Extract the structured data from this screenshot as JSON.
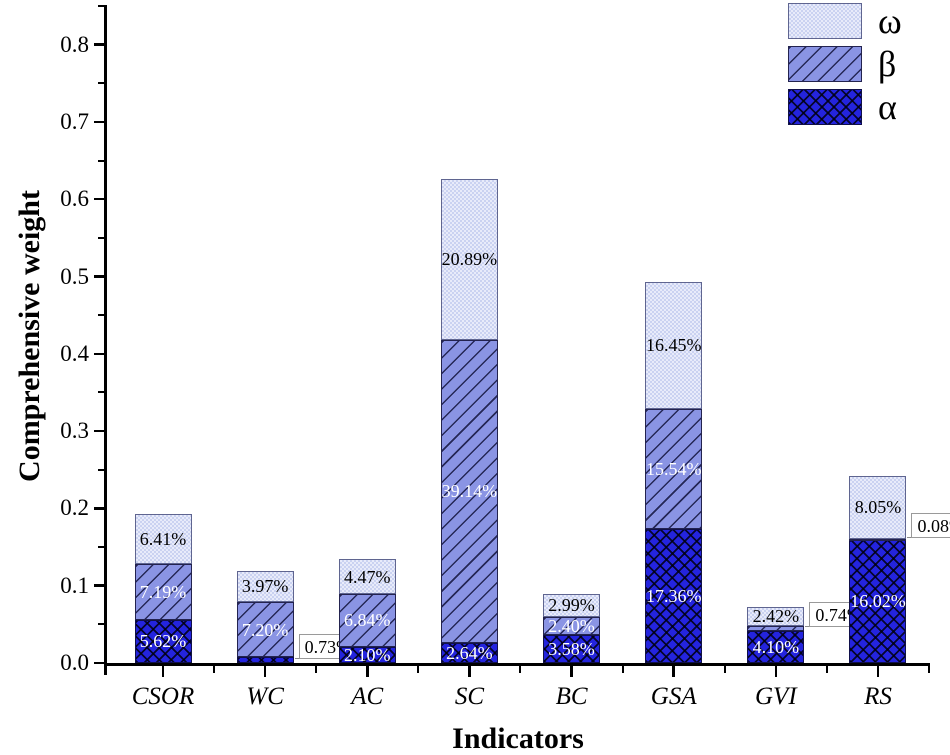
{
  "figure": {
    "background": "#ffffff",
    "accent_colors": {
      "alpha_fill": "#2424DE",
      "beta_fill": "#8A94E4",
      "omega_fill": "#CDD5F2",
      "axis_color": "#000000",
      "inside_label_light": "#ffffff",
      "inside_label_dark": "#000000"
    }
  },
  "chart_data": {
    "type": "bar",
    "subtype": "stacked-vertical",
    "title": "",
    "xlabel": "Indicators",
    "ylabel": "Comprehensive weight",
    "unit": "%",
    "note": "segment values are percentages; bar height in weight units = value/100",
    "categories": [
      "CSOR",
      "WC",
      "AC",
      "SC",
      "BC",
      "GSA",
      "GVI",
      "RS"
    ],
    "series": [
      {
        "name": "α",
        "pattern": "alpha",
        "label_color": "light",
        "values": [
          5.62,
          0.73,
          2.1,
          2.64,
          3.58,
          17.36,
          4.1,
          16.02
        ],
        "outside_label_categories": [
          "WC"
        ]
      },
      {
        "name": "β",
        "pattern": "beta",
        "label_color": "light",
        "values": [
          7.19,
          7.2,
          6.84,
          39.14,
          2.4,
          15.54,
          0.74,
          0.08
        ],
        "outside_label_categories": [
          "GVI",
          "RS"
        ]
      },
      {
        "name": "ω",
        "pattern": "omega",
        "label_color": "dark",
        "values": [
          6.41,
          3.97,
          4.47,
          20.89,
          2.99,
          16.45,
          2.42,
          8.05
        ],
        "outside_label_categories": []
      }
    ],
    "bar_totals_weight": [
      0.1922,
      0.119,
      0.1341,
      0.6267,
      0.0897,
      0.4935,
      0.0726,
      0.2415
    ],
    "ylim": [
      0.0,
      0.85
    ],
    "yticks": [
      0.0,
      0.1,
      0.2,
      0.3,
      0.4,
      0.5,
      0.6,
      0.7,
      0.8
    ],
    "minor_ytick_step": 0.05,
    "grid": "off",
    "legend": {
      "position": "top-right",
      "items": [
        {
          "label": "ω",
          "pattern": "omega"
        },
        {
          "label": "β",
          "pattern": "beta"
        },
        {
          "label": "α",
          "pattern": "alpha"
        }
      ]
    }
  }
}
